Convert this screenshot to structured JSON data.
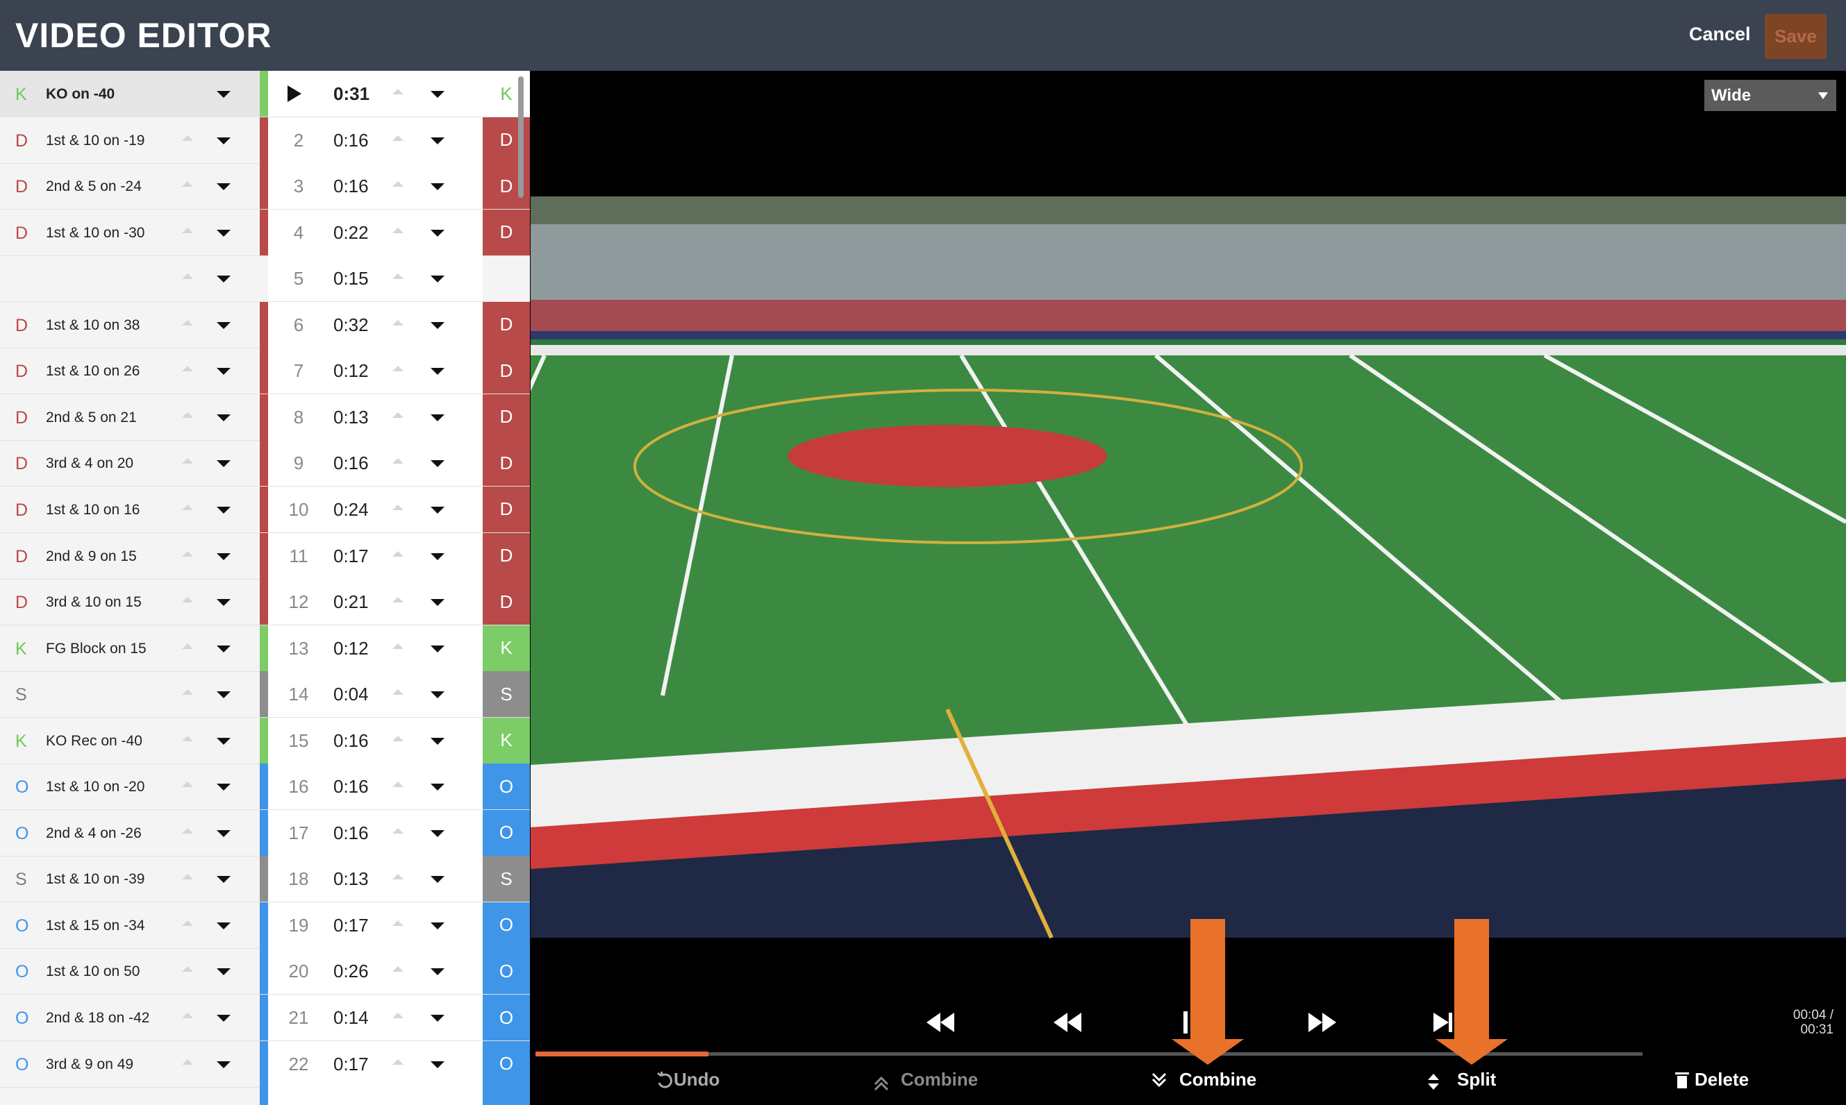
{
  "header": {
    "title": "VIDEO EDITOR",
    "cancel": "Cancel",
    "save": "Save"
  },
  "rows": [
    {
      "type": "K",
      "label": "KO on -40",
      "duration": "0:31"
    },
    {
      "type": "D",
      "label": "1st & 10 on -19",
      "index": 2,
      "duration": "0:16"
    },
    {
      "type": "D",
      "label": "2nd & 5 on -24",
      "index": 3,
      "duration": "0:16"
    },
    {
      "type": "D",
      "label": "1st & 10 on -30",
      "index": 4,
      "duration": "0:22"
    },
    {
      "index": 5,
      "duration": "0:15"
    },
    {
      "type": "D",
      "label": "1st & 10 on 38",
      "index": 6,
      "duration": "0:32"
    },
    {
      "type": "D",
      "label": "1st & 10 on 26",
      "index": 7,
      "duration": "0:12"
    },
    {
      "type": "D",
      "label": "2nd & 5 on 21",
      "index": 8,
      "duration": "0:13"
    },
    {
      "type": "D",
      "label": "3rd & 4 on 20",
      "index": 9,
      "duration": "0:16"
    },
    {
      "type": "D",
      "label": "1st & 10 on 16",
      "index": 10,
      "duration": "0:24"
    },
    {
      "type": "D",
      "label": "2nd & 9 on 15",
      "index": 11,
      "duration": "0:17"
    },
    {
      "type": "D",
      "label": "3rd & 10 on 15",
      "index": 12,
      "duration": "0:21"
    },
    {
      "type": "K",
      "label": "FG Block on 15",
      "index": 13,
      "duration": "0:12"
    },
    {
      "type": "S",
      "index": 14,
      "duration": "0:04"
    },
    {
      "type": "K",
      "label": "KO Rec on -40",
      "index": 15,
      "duration": "0:16"
    },
    {
      "type": "O",
      "label": "1st & 10 on -20",
      "index": 16,
      "duration": "0:16"
    },
    {
      "type": "O",
      "label": "2nd & 4 on -26",
      "index": 17,
      "duration": "0:16"
    },
    {
      "type": "S",
      "label": "1st & 10 on -39",
      "index": 18,
      "duration": "0:13"
    },
    {
      "type": "O",
      "label": "1st & 15 on -34",
      "index": 19,
      "duration": "0:17"
    },
    {
      "type": "O",
      "label": "1st & 10 on 50",
      "index": 20,
      "duration": "0:26"
    },
    {
      "type": "O",
      "label": "2nd & 18 on -42",
      "index": 21,
      "duration": "0:14"
    },
    {
      "type": "O",
      "label": "3rd & 9 on 49",
      "index": 22,
      "duration": "0:17"
    }
  ],
  "video": {
    "view": "Wide",
    "time": "00:04 /",
    "total": "00:31"
  },
  "toolbar": {
    "undo": "Undo",
    "combine_up": "Combine",
    "combine_down": "Combine",
    "split": "Split",
    "delete": "Delete"
  }
}
